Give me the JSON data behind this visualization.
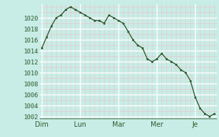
{
  "background_color": "#c8ece6",
  "line_color": "#2d5a2d",
  "marker_color": "#2d5a2d",
  "grid_white_color": "#ffffff",
  "grid_pink_color": "#e8c8c8",
  "ylim": [
    1001.5,
    1022.5
  ],
  "yticks": [
    1002,
    1004,
    1006,
    1008,
    1010,
    1012,
    1014,
    1016,
    1018,
    1020
  ],
  "x_day_labels": [
    "Dim",
    "Lun",
    "Mar",
    "Mer",
    "Je"
  ],
  "x_day_positions": [
    0,
    8,
    16,
    24,
    32
  ],
  "n_points": 37,
  "values": [
    1014.5,
    1016.5,
    1018.5,
    1020.0,
    1020.5,
    1021.5,
    1022.0,
    1021.5,
    1021.0,
    1020.5,
    1020.0,
    1019.5,
    1019.5,
    1019.0,
    1020.5,
    1020.0,
    1019.5,
    1019.0,
    1017.5,
    1016.0,
    1015.0,
    1014.5,
    1012.5,
    1012.0,
    1012.5,
    1013.5,
    1012.5,
    1012.0,
    1011.5,
    1010.5,
    1010.0,
    1008.5,
    1005.5,
    1003.5,
    1002.5,
    1002.0,
    1002.5
  ],
  "tick_fontsize": 6.5,
  "xlabel_fontsize": 7.0,
  "tick_color": "#2d5a2d",
  "bottom_line_color": "#2d5a2d"
}
